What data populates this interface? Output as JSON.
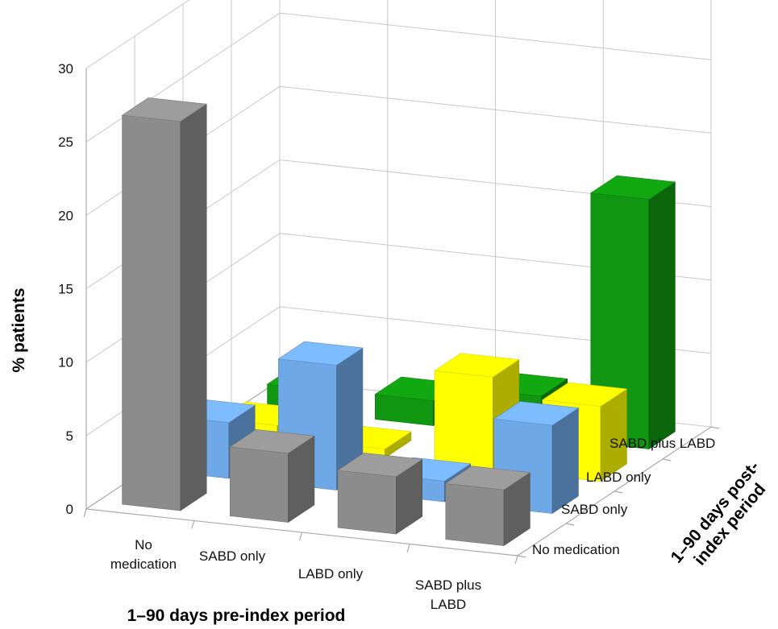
{
  "chart_data": {
    "type": "bar",
    "variant": "3d-grouped-bar",
    "title": "",
    "xlabel": "1–90 days pre-index period",
    "ylabel": "% patients",
    "zlabel": "1–90 days post-index period",
    "ylim": [
      0,
      30
    ],
    "yticks": [
      "0",
      "5",
      "10",
      "15",
      "20",
      "25",
      "30"
    ],
    "categories": [
      "No medication",
      "SABD only",
      "LABD only",
      "SABD plus LABD"
    ],
    "series": [
      {
        "name": "No medication",
        "color": "#8c8c8c",
        "values": [
          26.5,
          4.7,
          3.9,
          3.8
        ]
      },
      {
        "name": "SABD only",
        "color": "#6fa8e6",
        "values": [
          3.8,
          8.5,
          1.4,
          6.0
        ]
      },
      {
        "name": "LABD only",
        "color": "#ffff00",
        "values": [
          1.4,
          0.6,
          6.3,
          5.1
        ]
      },
      {
        "name": "SABD plus LABD",
        "color": "#109610",
        "values": [
          1.6,
          1.7,
          2.8,
          17.0
        ]
      }
    ],
    "grid": true,
    "legend": "none"
  }
}
